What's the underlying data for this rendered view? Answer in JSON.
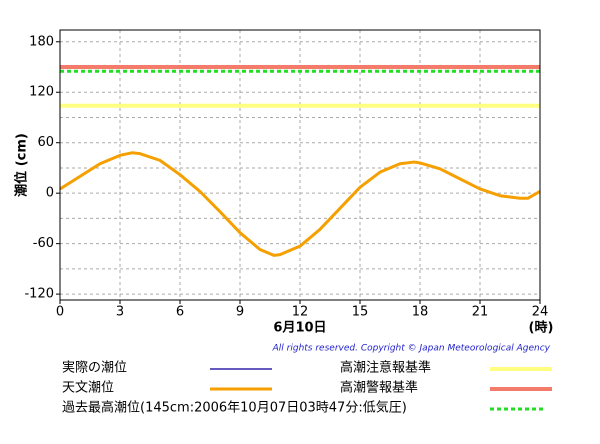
{
  "chart_data": {
    "type": "line",
    "y_label": "潮位 (cm)",
    "x_label": "6月10日",
    "x_unit": "(時)",
    "copyright": "All rights reserved. Copyright © Japan Meteorological Agency",
    "x": [
      0,
      1,
      2,
      3,
      3.6,
      4,
      5,
      6,
      7,
      8,
      9,
      10,
      10.7,
      11,
      12,
      13,
      14,
      15,
      16,
      17,
      17.7,
      18,
      19,
      20,
      21,
      22,
      23,
      23.4,
      24
    ],
    "series": [
      {
        "name": "実際の潮位",
        "color": "#3322aa",
        "values": [
          null,
          null,
          null,
          null,
          null,
          null,
          null,
          null,
          null,
          null,
          null,
          null,
          null,
          null,
          null,
          null,
          null,
          null,
          null,
          null,
          null,
          null,
          null,
          null,
          null,
          null,
          null,
          null,
          null
        ]
      },
      {
        "name": "天文潮位",
        "color": "#f5a000",
        "values": [
          5,
          20,
          35,
          45,
          48,
          47,
          39,
          22,
          2,
          -22,
          -47,
          -67,
          -74,
          -73,
          -63,
          -43,
          -18,
          7,
          25,
          35,
          37,
          36,
          29,
          17,
          5,
          -3,
          -6,
          -6,
          2
        ]
      }
    ],
    "reference_lines": [
      {
        "name": "高潮注意報基準",
        "value": 104,
        "color": "#ffff80",
        "style": "solid"
      },
      {
        "name": "高潮警報基準",
        "value": 150,
        "color": "#f47a6a",
        "style": "solid"
      },
      {
        "name": "過去最高潮位(145cm:2006年10月07日03時47分:低気圧)",
        "value": 145,
        "color": "#22dd22",
        "style": "dashed"
      }
    ],
    "xlim": [
      0,
      24
    ],
    "xticks": [
      0,
      3,
      6,
      9,
      12,
      15,
      18,
      21,
      24
    ],
    "ylim": [
      -127,
      194
    ],
    "yticks": [
      180,
      120,
      60,
      0,
      -60,
      -120
    ],
    "ygrid": [
      180,
      150,
      120,
      90,
      60,
      30,
      0,
      -30,
      -60,
      -90,
      -120
    ],
    "grid": true
  }
}
